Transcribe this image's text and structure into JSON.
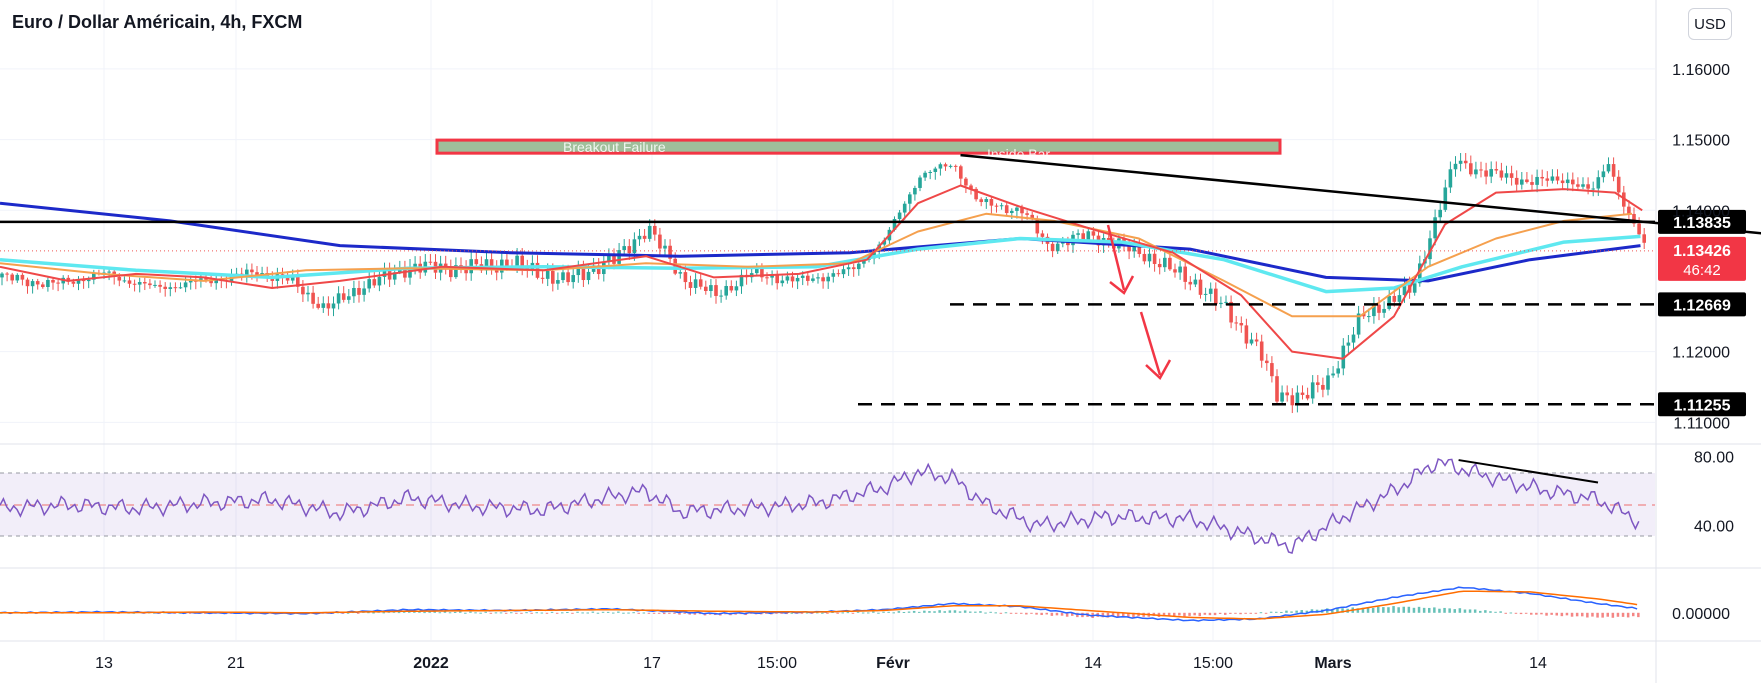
{
  "header": {
    "title": "Euro / Dollar Américain, 4h, FXCM",
    "currency_button": "USD"
  },
  "colors": {
    "ma_dark_blue": "#1c29c9",
    "ma_cyan": "#5ee8f0",
    "ma_orange": "#f5a04e",
    "ma_red": "#ef4848",
    "candle_up": "#26a69a",
    "candle_down": "#ef5350",
    "rsi_line": "#7e57c2",
    "macd_line": "#2962ff",
    "signal_line": "#ff6d00",
    "projection_arrow": "#f23645"
  },
  "chart_data": [
    {
      "type": "candlestick",
      "symbol": "EURUSD",
      "timeframe": "4h",
      "x_tick_labels": [
        "13",
        "21",
        "2022",
        "17",
        "15:00",
        "Févr",
        "14",
        "15:00",
        "Mars",
        "14"
      ],
      "y_tick_labels": [
        "1.16000",
        "1.15000",
        "1.14000",
        "1.12000",
        "1.11000"
      ],
      "ylim": [
        1.1075,
        1.1655
      ],
      "close_path": [
        [
          0,
          1.1305
        ],
        [
          30,
          1.1295
        ],
        [
          60,
          1.131
        ],
        [
          90,
          1.129
        ],
        [
          120,
          1.13
        ],
        [
          150,
          1.1312
        ],
        [
          170,
          1.13
        ],
        [
          190,
          1.126
        ],
        [
          210,
          1.129
        ],
        [
          240,
          1.132
        ],
        [
          270,
          1.1318
        ],
        [
          300,
          1.1325
        ],
        [
          330,
          1.13
        ],
        [
          360,
          1.133
        ],
        [
          380,
          1.1375
        ],
        [
          400,
          1.1305
        ],
        [
          420,
          1.128
        ],
        [
          440,
          1.131
        ],
        [
          470,
          1.13
        ],
        [
          500,
          1.1315
        ],
        [
          520,
          1.136
        ],
        [
          540,
          1.145
        ],
        [
          560,
          1.1465
        ],
        [
          575,
          1.141
        ],
        [
          600,
          1.14
        ],
        [
          615,
          1.135
        ],
        [
          640,
          1.1365
        ],
        [
          670,
          1.134
        ],
        [
          700,
          1.13
        ],
        [
          720,
          1.126
        ],
        [
          740,
          1.12
        ],
        [
          750,
          1.114
        ],
        [
          765,
          1.1135
        ],
        [
          780,
          1.116
        ],
        [
          800,
          1.125
        ],
        [
          830,
          1.129
        ],
        [
          845,
          1.14
        ],
        [
          855,
          1.147
        ],
        [
          870,
          1.1455
        ],
        [
          900,
          1.144
        ],
        [
          920,
          1.1445
        ],
        [
          935,
          1.1425
        ],
        [
          945,
          1.147
        ],
        [
          955,
          1.14
        ],
        [
          968,
          1.1342
        ]
      ],
      "moving_averages": [
        {
          "color_key": "ma_dark_blue",
          "points": [
            [
              0,
              1.141
            ],
            [
              100,
              1.1385
            ],
            [
              200,
              1.135
            ],
            [
              300,
              1.134
            ],
            [
              400,
              1.1335
            ],
            [
              500,
              1.134
            ],
            [
              600,
              1.136
            ],
            [
              700,
              1.1345
            ],
            [
              780,
              1.1305
            ],
            [
              840,
              1.13
            ],
            [
              900,
              1.133
            ],
            [
              965,
              1.135
            ]
          ]
        },
        {
          "color_key": "ma_cyan",
          "points": [
            [
              0,
              1.133
            ],
            [
              80,
              1.1315
            ],
            [
              160,
              1.1305
            ],
            [
              240,
              1.1318
            ],
            [
              320,
              1.132
            ],
            [
              400,
              1.1318
            ],
            [
              480,
              1.132
            ],
            [
              540,
              1.1345
            ],
            [
              600,
              1.136
            ],
            [
              660,
              1.1355
            ],
            [
              720,
              1.133
            ],
            [
              780,
              1.1285
            ],
            [
              820,
              1.129
            ],
            [
              860,
              1.132
            ],
            [
              920,
              1.1355
            ],
            [
              965,
              1.1363
            ]
          ]
        },
        {
          "color_key": "ma_orange",
          "points": [
            [
              0,
              1.1325
            ],
            [
              60,
              1.131
            ],
            [
              120,
              1.13
            ],
            [
              180,
              1.1315
            ],
            [
              240,
              1.1318
            ],
            [
              320,
              1.1315
            ],
            [
              380,
              1.1325
            ],
            [
              440,
              1.132
            ],
            [
              500,
              1.1325
            ],
            [
              540,
              1.137
            ],
            [
              580,
              1.1395
            ],
            [
              620,
              1.1385
            ],
            [
              670,
              1.136
            ],
            [
              720,
              1.13
            ],
            [
              760,
              1.125
            ],
            [
              800,
              1.125
            ],
            [
              840,
              1.132
            ],
            [
              880,
              1.136
            ],
            [
              920,
              1.1385
            ],
            [
              960,
              1.1395
            ]
          ]
        },
        {
          "color_key": "ma_red",
          "points": [
            [
              0,
              1.132
            ],
            [
              40,
              1.13
            ],
            [
              80,
              1.131
            ],
            [
              120,
              1.1305
            ],
            [
              160,
              1.129
            ],
            [
              200,
              1.13
            ],
            [
              260,
              1.132
            ],
            [
              320,
              1.1315
            ],
            [
              380,
              1.1335
            ],
            [
              420,
              1.1305
            ],
            [
              470,
              1.131
            ],
            [
              510,
              1.133
            ],
            [
              540,
              1.141
            ],
            [
              565,
              1.1435
            ],
            [
              600,
              1.1405
            ],
            [
              640,
              1.1375
            ],
            [
              690,
              1.134
            ],
            [
              730,
              1.128
            ],
            [
              760,
              1.12
            ],
            [
              790,
              1.119
            ],
            [
              820,
              1.125
            ],
            [
              850,
              1.138
            ],
            [
              880,
              1.1425
            ],
            [
              920,
              1.143
            ],
            [
              950,
              1.1425
            ],
            [
              966,
              1.14
            ]
          ]
        }
      ],
      "resistance_zone": {
        "y_low": 1.1485,
        "y_high": 1.1495
      },
      "resistance_zone_labels": [
        "Breakout Failure",
        "Inside Bar"
      ],
      "horizontal_levels": [
        {
          "price": 1.13835,
          "label": "1.13835",
          "style": "solid"
        },
        {
          "price": 1.12669,
          "label": "1.12669",
          "style": "dashed"
        },
        {
          "price": 1.11255,
          "label": "1.11255",
          "style": "dashed"
        }
      ],
      "trendline": {
        "from": [
          565,
          1.1478
        ],
        "to": [
          1472,
          1.1265
        ]
      },
      "last_price": {
        "value": "1.13426",
        "countdown": "46:42"
      }
    },
    {
      "type": "line",
      "name": "RSI",
      "y_tick_labels": [
        "80.00",
        "40.00"
      ],
      "band": [
        30,
        70
      ],
      "midline": 50,
      "ylim": [
        20,
        85
      ],
      "x": [
        0,
        40,
        80,
        120,
        160,
        200,
        240,
        280,
        320,
        360,
        380,
        400,
        440,
        480,
        520,
        540,
        560,
        580,
        610,
        650,
        700,
        740,
        760,
        790,
        820,
        845,
        870,
        900,
        940,
        965
      ],
      "values": [
        50,
        52,
        50,
        53,
        55,
        47,
        56,
        51,
        49,
        57,
        60,
        48,
        50,
        53,
        62,
        71,
        68,
        52,
        40,
        45,
        44,
        33,
        28,
        45,
        60,
        77,
        70,
        62,
        55,
        42
      ],
      "divergence_line": {
        "from": [
          858,
          78
        ],
        "to": [
          940,
          65
        ]
      }
    },
    {
      "type": "line",
      "name": "MACD",
      "y_tick_labels": [
        "0.00000"
      ],
      "ylim": [
        -0.003,
        0.0045
      ],
      "x": [
        0,
        60,
        120,
        180,
        240,
        300,
        360,
        420,
        480,
        520,
        560,
        600,
        640,
        700,
        740,
        780,
        820,
        860,
        900,
        940,
        965
      ],
      "macd": [
        0.0,
        0.0001,
        0.0,
        -0.0001,
        0.0004,
        0.0003,
        0.0005,
        -0.0001,
        0.0001,
        0.0004,
        0.0012,
        0.0008,
        -0.0003,
        -0.001,
        -0.0008,
        0.0003,
        0.002,
        0.0033,
        0.0025,
        0.0012,
        0.0005
      ],
      "signal": [
        0.0,
        0.0,
        0.0001,
        0.0,
        0.0002,
        0.0003,
        0.0004,
        0.0002,
        0.0001,
        0.0003,
        0.0009,
        0.0009,
        0.0003,
        -0.0006,
        -0.0008,
        -0.0002,
        0.0012,
        0.0028,
        0.0027,
        0.0018,
        0.001
      ]
    }
  ]
}
